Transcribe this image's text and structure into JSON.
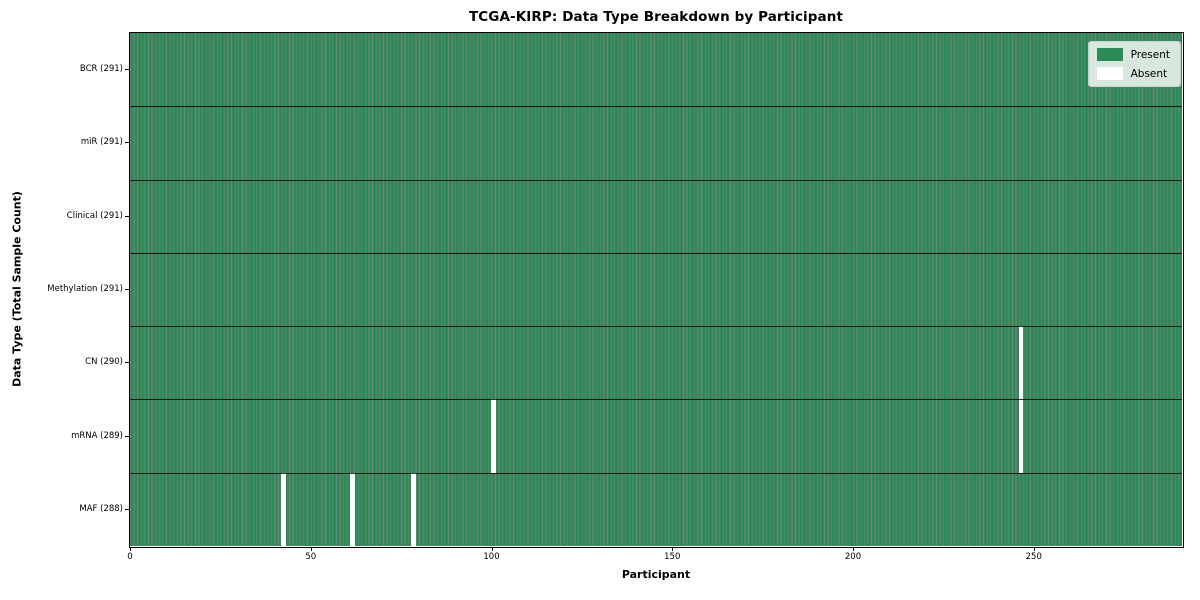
{
  "chart_data": {
    "type": "heatmap",
    "title": "TCGA-KIRP: Data Type Breakdown by Participant",
    "xlabel": "Participant",
    "ylabel": "Data Type (Total Sample Count)",
    "n_participants": 291,
    "xlim": [
      0,
      291
    ],
    "x_ticks": [
      0,
      50,
      100,
      150,
      200,
      250
    ],
    "grid": false,
    "legend_position": "upper right",
    "rows": [
      {
        "data_type": "BCR",
        "label": "BCR (291)",
        "total_samples": 291,
        "absent_participants": []
      },
      {
        "data_type": "miR",
        "label": "miR (291)",
        "total_samples": 291,
        "absent_participants": []
      },
      {
        "data_type": "Clinical",
        "label": "Clinical (291)",
        "total_samples": 291,
        "absent_participants": []
      },
      {
        "data_type": "Methylation",
        "label": "Methylation (291)",
        "total_samples": 291,
        "absent_participants": []
      },
      {
        "data_type": "CN",
        "label": "CN (290)",
        "total_samples": 290,
        "absent_participants": [
          246
        ]
      },
      {
        "data_type": "mRNA",
        "label": "mRNA (289)",
        "total_samples": 289,
        "absent_participants": [
          100,
          246
        ]
      },
      {
        "data_type": "MAF",
        "label": "MAF (288)",
        "total_samples": 288,
        "absent_participants": [
          42,
          61,
          78
        ]
      }
    ],
    "legend": [
      {
        "label": "Present",
        "color": "#2e8b57"
      },
      {
        "label": "Absent",
        "color": "#ffffff"
      }
    ],
    "colors": {
      "present": "#2e8b57",
      "absent": "#ffffff",
      "cell_edge": "rgba(0,0,0,0.5)",
      "row_separator": "rgba(0,0,0,0.8)",
      "frame": "#000000",
      "legend_bg": "rgba(255,255,255,0.8)",
      "legend_border": "#cccccc"
    }
  }
}
